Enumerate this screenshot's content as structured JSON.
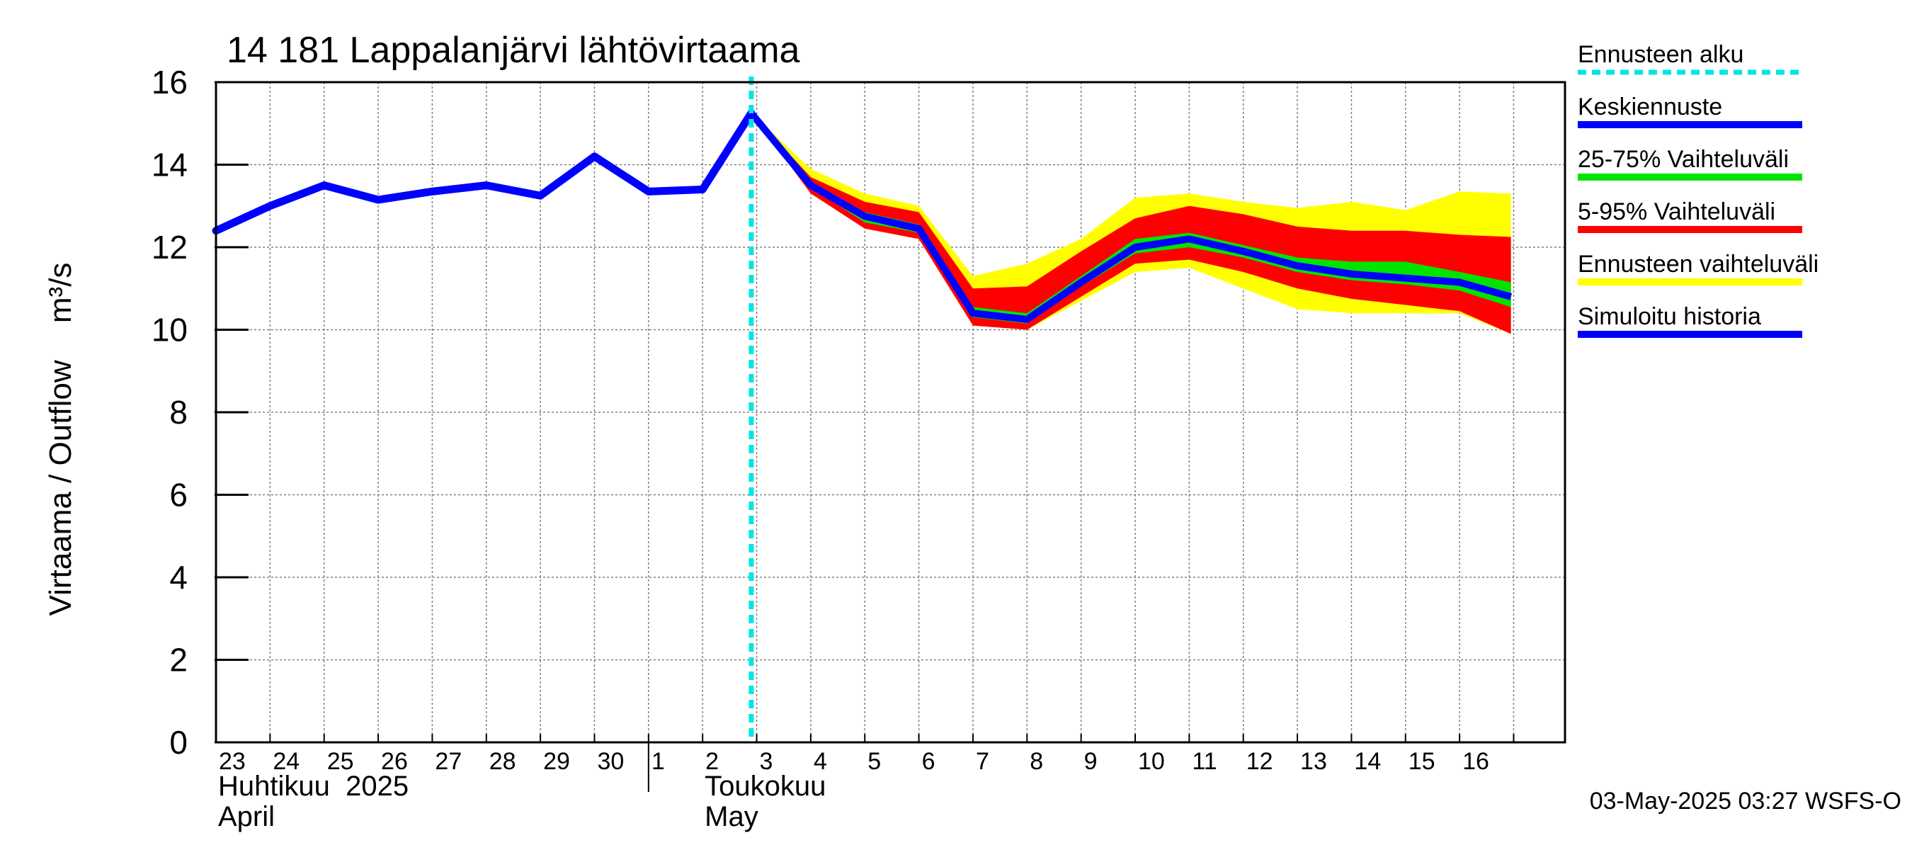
{
  "chart_data": {
    "type": "line",
    "title": "14 181 Lappalanjärvi lähtövirtaama",
    "ylabel_fi": "Virtaama / Outflow",
    "ylabel_unit": "m³/s",
    "ylim": [
      0,
      16
    ],
    "yticks": [
      0,
      2,
      4,
      6,
      8,
      10,
      12,
      14,
      16
    ],
    "grid": true,
    "x_start": "2025-04-23",
    "x_days": 24.95,
    "day_labels": [
      "23",
      "24",
      "25",
      "26",
      "27",
      "28",
      "29",
      "30",
      "1",
      "2",
      "3",
      "4",
      "5",
      "6",
      "7",
      "8",
      "9",
      "10",
      "11",
      "12",
      "13",
      "14",
      "15",
      "16"
    ],
    "month_labels": [
      {
        "fi": "Huhtikuu  2025",
        "en": "April",
        "day_index": 0
      },
      {
        "fi": "Toukokuu",
        "en": "May",
        "day_index": 9
      }
    ],
    "forecast_start_day": 9.9,
    "history": {
      "name": "Simuloitu historia",
      "x": [
        0,
        1,
        2,
        3,
        4,
        5,
        6,
        7,
        8,
        9,
        9.9
      ],
      "y": [
        12.4,
        13.0,
        13.5,
        13.15,
        13.35,
        13.5,
        13.25,
        14.2,
        13.35,
        13.4,
        15.25
      ]
    },
    "forecast_x": [
      9.9,
      11,
      12,
      13,
      14,
      15,
      16,
      17,
      18,
      19,
      20,
      21,
      22,
      23,
      23.95
    ],
    "band_outer": {
      "name": "Ennusteen vaihteluväli",
      "lower": [
        15.25,
        13.3,
        12.45,
        12.2,
        10.1,
        10.0,
        10.7,
        11.4,
        11.5,
        11.0,
        10.5,
        10.4,
        10.4,
        10.4,
        9.9
      ],
      "upper": [
        15.25,
        13.9,
        13.3,
        13.0,
        11.3,
        11.6,
        12.2,
        13.2,
        13.3,
        13.1,
        12.95,
        13.1,
        12.9,
        13.35,
        13.3
      ]
    },
    "band_90": {
      "name": "5-95% Vaihteluväli",
      "lower": [
        15.25,
        13.3,
        12.45,
        12.2,
        10.1,
        10.0,
        10.8,
        11.6,
        11.7,
        11.4,
        11.0,
        10.75,
        10.6,
        10.45,
        9.9
      ],
      "upper": [
        15.25,
        13.7,
        13.1,
        12.85,
        11.0,
        11.05,
        11.9,
        12.7,
        13.0,
        12.8,
        12.5,
        12.4,
        12.4,
        12.3,
        12.25
      ]
    },
    "band_50": {
      "name": "25-75% Vaihteluväli",
      "lower": [
        15.25,
        13.45,
        12.6,
        12.35,
        10.3,
        10.15,
        11.05,
        11.85,
        12.0,
        11.75,
        11.4,
        11.2,
        11.1,
        10.95,
        10.55
      ],
      "upper": [
        15.25,
        13.6,
        12.85,
        12.55,
        10.55,
        10.4,
        11.3,
        12.2,
        12.35,
        12.05,
        11.75,
        11.65,
        11.65,
        11.4,
        11.15
      ]
    },
    "median": {
      "name": "Keskiennuste",
      "y": [
        15.25,
        13.5,
        12.75,
        12.45,
        10.4,
        10.25,
        11.15,
        12.0,
        12.2,
        11.9,
        11.55,
        11.35,
        11.25,
        11.15,
        10.8
      ]
    },
    "legend": [
      {
        "label": "Ennusteen alku",
        "color": "#00e5e5",
        "style": "dashed"
      },
      {
        "label": "Keskiennuste",
        "color": "#0000ff",
        "style": "line"
      },
      {
        "label": "25-75% Vaihteluväli",
        "color": "#00e400",
        "style": "line"
      },
      {
        "label": "5-95% Vaihteluväli",
        "color": "#ff0000",
        "style": "line"
      },
      {
        "label": "Ennusteen vaihteluväli",
        "color": "#ffff00",
        "style": "line"
      },
      {
        "label": "Simuloitu historia",
        "color": "#0000ff",
        "style": "line"
      }
    ],
    "colors": {
      "history": "#0000ff",
      "median": "#0000ff",
      "band_50": "#00e400",
      "band_90": "#ff0000",
      "band_outer": "#ffff00",
      "forecast_start": "#00e5e5",
      "grid": "#808080"
    }
  },
  "timestamp": "03-May-2025 03:27 WSFS-O"
}
